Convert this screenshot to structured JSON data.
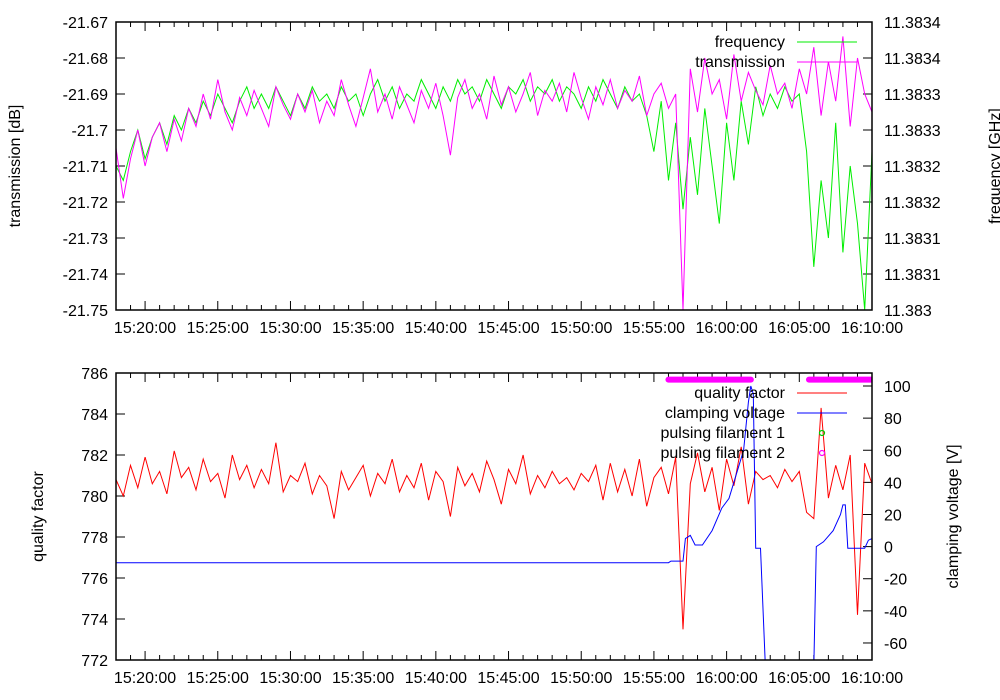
{
  "chart_data": [
    {
      "type": "line",
      "panel": "top",
      "x_start": "15:18:00",
      "x_end": "16:10:00",
      "x_step_seconds": 30,
      "x_ticks": [
        "15:20:00",
        "15:25:00",
        "15:30:00",
        "15:35:00",
        "15:40:00",
        "15:45:00",
        "15:50:00",
        "15:55:00",
        "16:00:00",
        "16:05:00",
        "16:10:00"
      ],
      "ylabel": "transmission [dB]",
      "y2label": "frequency [GHz]",
      "ylim": [
        -21.75,
        -21.67
      ],
      "y2lim": [
        11.383,
        11.3834
      ],
      "y_ticks": [
        "-21.75",
        "-21.74",
        "-21.73",
        "-21.72",
        "-21.71",
        "-21.7",
        "-21.69",
        "-21.68",
        "-21.67"
      ],
      "y2_ticks": [
        "11.383",
        "11.3831",
        "11.3831",
        "11.3832",
        "11.3832",
        "11.3833",
        "11.3833",
        "11.3834",
        "11.3834"
      ],
      "legend_position": "top-right",
      "series": [
        {
          "name": "frequency",
          "axis": "y2",
          "color": "#00ee00",
          "values": [
            11.3832,
            11.38318,
            11.38322,
            11.38325,
            11.38321,
            11.38324,
            11.38326,
            11.38323,
            11.38327,
            11.38325,
            11.38328,
            11.38326,
            11.38329,
            11.38327,
            11.3833,
            11.38328,
            11.38326,
            11.38329,
            11.38331,
            11.38328,
            11.3833,
            11.38328,
            11.38331,
            11.38329,
            11.38327,
            11.3833,
            11.38328,
            11.38331,
            11.38329,
            11.3833,
            11.38328,
            11.38331,
            11.38329,
            11.3833,
            11.38327,
            11.3833,
            11.38332,
            11.38329,
            11.38331,
            11.38328,
            11.3833,
            11.38329,
            11.38332,
            11.3833,
            11.38328,
            11.38331,
            11.38329,
            11.38332,
            11.3833,
            11.38331,
            11.38329,
            11.38332,
            11.3833,
            11.38328,
            11.38331,
            11.3833,
            11.38332,
            11.38329,
            11.38331,
            11.3833,
            11.38332,
            11.38329,
            11.38331,
            11.3833,
            11.38328,
            11.38331,
            11.38329,
            11.38332,
            11.3833,
            11.38328,
            11.38331,
            11.38329,
            11.3833,
            11.38327,
            11.38322,
            11.38329,
            11.38318,
            11.38326,
            11.38314,
            11.38324,
            11.38316,
            11.38328,
            11.3832,
            11.38312,
            11.38326,
            11.38318,
            11.38329,
            11.38323,
            11.38331,
            11.38327,
            11.3833,
            11.38328,
            11.38331,
            11.38329,
            11.3833,
            11.38322,
            11.38306,
            11.38318,
            11.3831,
            11.38326,
            11.38308,
            11.3832,
            11.38312,
            11.383,
            11.38322
          ]
        },
        {
          "name": "transmission",
          "axis": "y",
          "color": "#ff00ff",
          "values": [
            -21.705,
            -21.719,
            -21.708,
            -21.7,
            -21.71,
            -21.702,
            -21.698,
            -21.706,
            -21.697,
            -21.703,
            -21.694,
            -21.699,
            -21.69,
            -21.697,
            -21.686,
            -21.695,
            -21.7,
            -21.691,
            -21.696,
            -21.689,
            -21.694,
            -21.699,
            -21.688,
            -21.693,
            -21.697,
            -21.69,
            -21.695,
            -21.689,
            -21.698,
            -21.692,
            -21.696,
            -21.686,
            -21.693,
            -21.699,
            -21.691,
            -21.683,
            -21.695,
            -21.69,
            -21.697,
            -21.688,
            -21.693,
            -21.698,
            -21.689,
            -21.694,
            -21.687,
            -21.696,
            -21.707,
            -21.691,
            -21.686,
            -21.694,
            -21.69,
            -21.697,
            -21.685,
            -21.693,
            -21.688,
            -21.695,
            -21.69,
            -21.684,
            -21.696,
            -21.689,
            -21.692,
            -21.687,
            -21.695,
            -21.684,
            -21.691,
            -21.697,
            -21.688,
            -21.693,
            -21.686,
            -21.694,
            -21.689,
            -21.692,
            -21.685,
            -21.696,
            -21.69,
            -21.687,
            -21.694,
            -21.69,
            -21.75,
            -21.683,
            -21.695,
            -21.68,
            -21.69,
            -21.686,
            -21.697,
            -21.679,
            -21.692,
            -21.684,
            -21.689,
            -21.693,
            -21.682,
            -21.69,
            -21.687,
            -21.694,
            -21.683,
            -21.69,
            -21.677,
            -21.696,
            -21.681,
            -21.692,
            -21.674,
            -21.699,
            -21.68,
            -21.69,
            -21.695
          ]
        }
      ]
    },
    {
      "type": "line",
      "panel": "bottom",
      "x_start": "15:18:00",
      "x_end": "16:10:00",
      "x_step_seconds": 30,
      "x_ticks": [
        "15:20:00",
        "15:25:00",
        "15:30:00",
        "15:35:00",
        "15:40:00",
        "15:45:00",
        "15:50:00",
        "15:55:00",
        "16:00:00",
        "16:05:00",
        "16:10:00"
      ],
      "ylabel": "quality factor",
      "y2label": "clamping voltage [V]",
      "ylim": [
        772,
        786
      ],
      "y2lim": [
        -70.6,
        108.1
      ],
      "y_ticks": [
        "772",
        "774",
        "776",
        "778",
        "780",
        "782",
        "784",
        "786"
      ],
      "y2_ticks": [
        "-60",
        "-40",
        "-20",
        "0",
        "20",
        "40",
        "60",
        "80",
        "100"
      ],
      "legend_position": "top-right",
      "series": [
        {
          "name": "quality factor",
          "axis": "y",
          "color": "#ff0000",
          "values": [
            780.8,
            780.0,
            781.5,
            780.4,
            781.9,
            780.6,
            781.2,
            780.1,
            782.2,
            780.9,
            781.4,
            780.3,
            781.8,
            780.7,
            781.1,
            779.9,
            782.0,
            780.8,
            781.5,
            780.4,
            781.3,
            780.6,
            782.6,
            780.2,
            781.0,
            780.7,
            781.6,
            780.1,
            781.0,
            780.5,
            778.9,
            781.2,
            780.3,
            780.9,
            781.5,
            780.0,
            781.1,
            780.6,
            781.8,
            780.2,
            781.0,
            780.4,
            781.6,
            779.8,
            781.2,
            780.7,
            779.0,
            781.4,
            780.5,
            781.1,
            780.2,
            781.7,
            780.8,
            779.6,
            781.3,
            780.6,
            782.0,
            780.1,
            781.0,
            780.4,
            781.2,
            780.6,
            780.9,
            780.3,
            781.1,
            780.7,
            781.5,
            779.8,
            781.6,
            780.2,
            781.3,
            780.0,
            781.8,
            779.5,
            780.9,
            781.4,
            780.1,
            781.9,
            773.5,
            780.6,
            782.1,
            780.2,
            781.4,
            779.3,
            781.8,
            780.5,
            782.4,
            779.6,
            781.2,
            780.8,
            781.0,
            780.4,
            781.3,
            780.7,
            781.2,
            779.2,
            778.9,
            784.3,
            779.9,
            781.5,
            780.3,
            782.0,
            774.2,
            781.6,
            780.6
          ]
        },
        {
          "name": "clamping voltage",
          "axis": "y2",
          "color": "#0000ff",
          "times": [
            "15:18:00",
            "15:56:00",
            "15:56:10",
            "15:57:00",
            "15:57:10",
            "15:57:30",
            "15:57:50",
            "15:58:20",
            "15:59:00",
            "15:59:40",
            "16:00:10",
            "16:00:40",
            "16:01:10",
            "16:01:30",
            "16:01:40",
            "16:01:50",
            "16:02:00",
            "16:02:20",
            "16:02:40",
            "16:06:00",
            "16:06:10",
            "16:06:40",
            "16:07:20",
            "16:07:50",
            "16:08:00",
            "16:08:10",
            "16:08:20",
            "16:09:30",
            "16:09:45",
            "16:10:00"
          ],
          "values": [
            -10,
            -10,
            -9,
            -9,
            5,
            7,
            1,
            1,
            10,
            24,
            30,
            45,
            60,
            90,
            100,
            95,
            -1,
            -1,
            -75,
            -75,
            0,
            3,
            10,
            20,
            26,
            26,
            -1,
            -1,
            4,
            5
          ]
        },
        {
          "name": "pulsing filament 1",
          "axis": "y2",
          "color": "#00cc00",
          "intervals": []
        },
        {
          "name": "pulsing filament 2",
          "axis": "y2",
          "color": "#ff00ff",
          "level": 104,
          "intervals": [
            [
              "15:56:00",
              "16:01:40"
            ],
            [
              "16:05:40",
              "16:10:00"
            ]
          ]
        }
      ]
    }
  ]
}
